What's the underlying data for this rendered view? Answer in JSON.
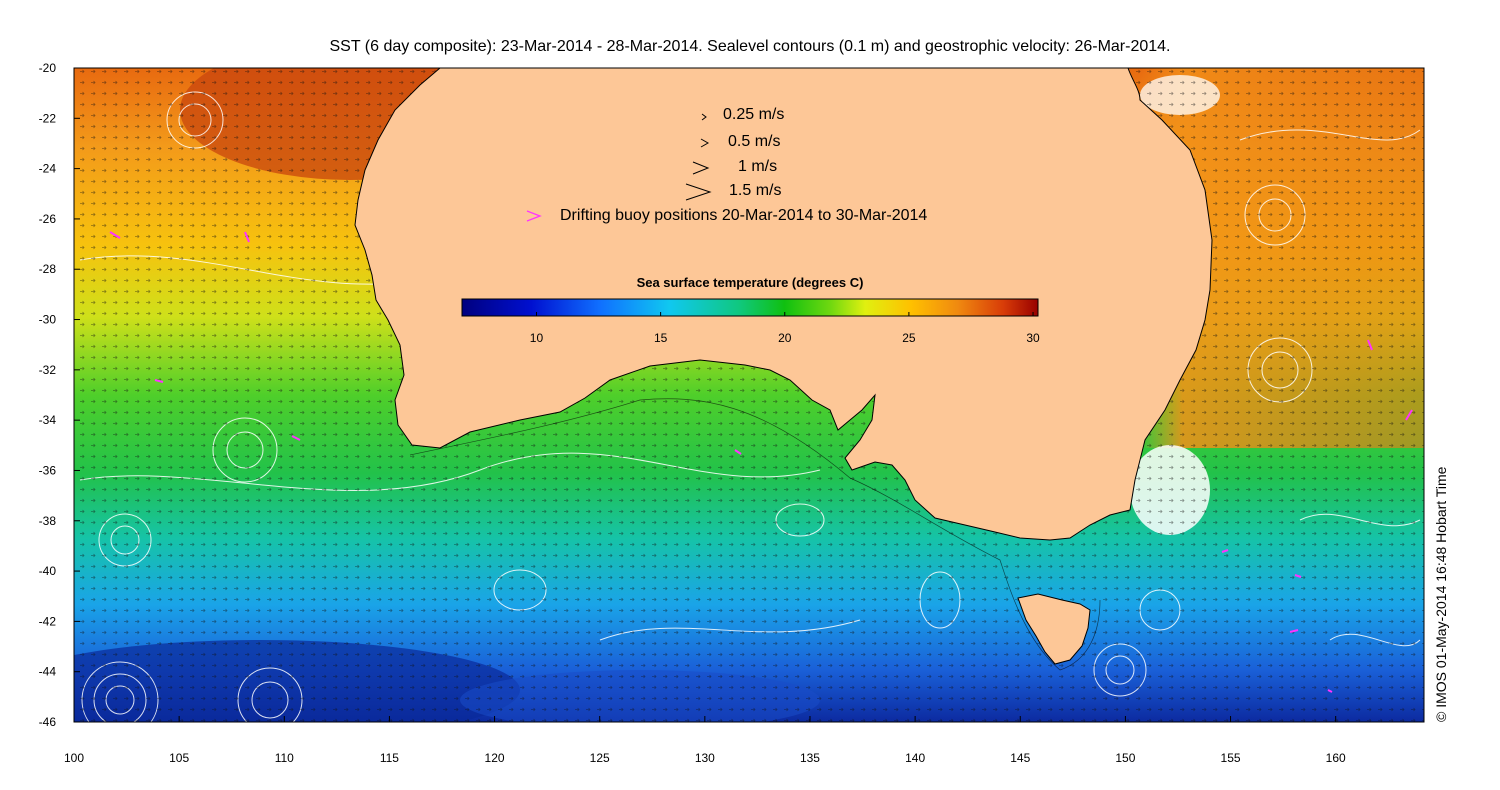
{
  "title": "SST (6 day composite): 23-Mar-2014 - 28-Mar-2014. Sealevel contours (0.1 m) and geostrophic velocity: 26-Mar-2014.",
  "legend": {
    "arrow_keys": [
      "0.25 m/s",
      "0.5 m/s",
      "1 m/s",
      "1.5 m/s"
    ],
    "buoy_label": "Drifting buoy positions 20-Mar-2014 to 30-Mar-2014",
    "buoy_color": "#ff33ff"
  },
  "colorbar": {
    "title": "Sea surface temperature (degrees C)",
    "ticks": [
      "10",
      "15",
      "20",
      "25",
      "30"
    ],
    "range": [
      7,
      30.2
    ]
  },
  "axes": {
    "longitude_ticks": [
      "100",
      "105",
      "110",
      "115",
      "120",
      "125",
      "130",
      "135",
      "140",
      "145",
      "150",
      "155",
      "160"
    ],
    "latitude_ticks": [
      "-20",
      "-22",
      "-24",
      "-26",
      "-28",
      "-30",
      "-32",
      "-34",
      "-36",
      "-38",
      "-40",
      "-42",
      "-44",
      "-46"
    ]
  },
  "colors": {
    "land": "#fdc797",
    "coast": "#000000",
    "contour": "#ffffff",
    "arrow": "#000000"
  },
  "copyright": "© IMOS 01-May-2014 16:48 Hobart Time"
}
